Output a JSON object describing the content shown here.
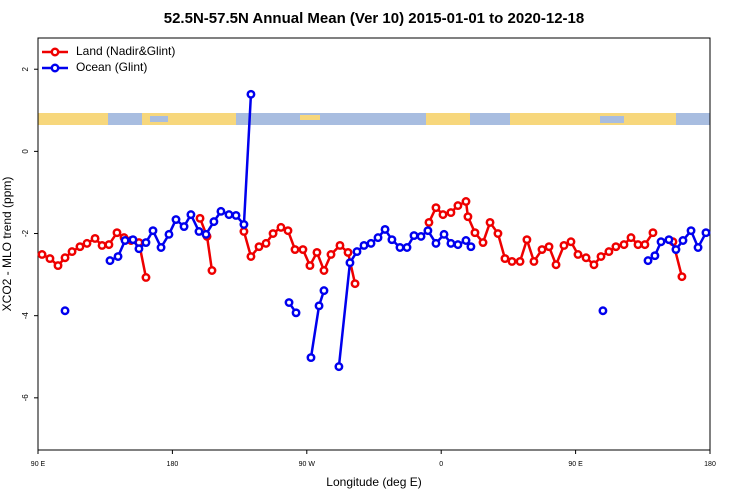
{
  "chart_data": {
    "type": "line",
    "title": "52.5N-57.5N Annual Mean (Ver 10)   2015-01-01 to 2020-12-18",
    "x_label": "Longitude (deg E)",
    "y_label": "XCO2 - MLO trend (ppm)",
    "xlim": [
      90,
      540
    ],
    "ylim": [
      -7.27,
      2.76
    ],
    "xticks": [
      {
        "value": 90,
        "label": "90 E"
      },
      {
        "value": 180,
        "label": "180"
      },
      {
        "value": 270,
        "label": "90 W"
      },
      {
        "value": 360,
        "label": "0"
      },
      {
        "value": 450,
        "label": "90 E"
      },
      {
        "value": 540,
        "label": "180"
      }
    ],
    "yticks": [
      -6,
      -4,
      -2,
      0,
      2
    ],
    "legend": "top-left",
    "series": [
      {
        "name": "Land (Nadir&Glint)",
        "color": "#ee0000",
        "x": [
          92.7,
          98.0,
          103.4,
          108.1,
          112.8,
          118.1,
          122.8,
          128.2,
          132.9,
          137.5,
          142.9,
          147.6,
          152.3,
          157.6,
          162.3,
          null,
          198.5,
          203.2,
          206.5,
          null,
          227.9,
          232.6,
          238.0,
          242.7,
          247.4,
          252.7,
          257.4,
          262.1,
          267.4,
          272.1,
          276.8,
          281.5,
          286.2,
          292.2,
          297.6,
          302.3,
          null,
          351.8,
          356.5,
          361.2,
          366.5,
          371.2,
          376.6,
          377.9,
          382.6,
          388.0,
          392.7,
          398.0,
          402.7,
          407.4,
          412.8,
          417.4,
          422.1,
          427.5,
          432.2,
          436.9,
          442.2,
          446.9,
          451.6,
          457.0,
          462.3,
          467.0,
          472.3,
          477.0,
          482.4,
          487.1,
          491.8,
          496.4,
          501.8,
          null,
          515.2,
          521.2
        ],
        "values": [
          -2.51,
          -2.61,
          -2.78,
          -2.59,
          -2.44,
          -2.32,
          -2.24,
          -2.12,
          -2.29,
          -2.27,
          -1.98,
          -2.1,
          -2.17,
          -2.22,
          -3.07,
          null,
          -1.63,
          -2.07,
          -2.9,
          null,
          -1.95,
          -2.56,
          -2.32,
          -2.24,
          -2.0,
          -1.85,
          -1.93,
          -2.39,
          -2.39,
          -2.78,
          -2.46,
          -2.9,
          -2.51,
          -2.29,
          -2.46,
          -3.22,
          null,
          -1.73,
          -1.37,
          -1.54,
          -1.49,
          -1.32,
          -1.22,
          -1.59,
          -1.98,
          -2.22,
          -1.73,
          -2.0,
          -2.61,
          -2.68,
          -2.68,
          -2.15,
          -2.68,
          -2.39,
          -2.32,
          -2.76,
          -2.29,
          -2.2,
          -2.51,
          -2.59,
          -2.76,
          -2.56,
          -2.44,
          -2.32,
          -2.27,
          -2.1,
          -2.27,
          -2.27,
          -1.98,
          null,
          -2.2,
          -3.05
        ]
      },
      {
        "name": "Ocean (Glint)",
        "color": "#0000ee",
        "x": [
          108.1,
          null,
          138.2,
          143.6,
          148.3,
          153.6,
          157.6,
          162.3,
          167.0,
          172.4,
          177.7,
          182.4,
          187.8,
          192.4,
          197.8,
          202.5,
          207.8,
          212.5,
          217.9,
          222.6,
          227.9,
          232.6,
          null,
          258.1,
          262.8,
          null,
          272.8,
          278.2,
          281.5,
          null,
          291.5,
          298.9,
          303.6,
          308.3,
          313.0,
          317.7,
          322.4,
          327.0,
          332.4,
          337.1,
          341.8,
          346.5,
          351.1,
          356.5,
          361.9,
          366.5,
          371.2,
          376.6,
          379.9,
          null,
          468.3,
          null,
          498.5,
          503.1,
          507.2,
          512.5,
          517.2,
          521.9,
          527.3,
          532.0,
          537.3
        ],
        "values": [
          -3.88,
          null,
          -2.66,
          -2.56,
          -2.17,
          -2.15,
          -2.37,
          -2.22,
          -1.93,
          -2.34,
          -2.02,
          -1.66,
          -1.83,
          -1.54,
          -1.95,
          -2.02,
          -1.71,
          -1.46,
          -1.54,
          -1.56,
          -1.78,
          1.39,
          null,
          -3.68,
          -3.93,
          null,
          -5.02,
          -3.76,
          -3.39,
          null,
          -5.24,
          -2.71,
          -2.44,
          -2.29,
          -2.24,
          -2.1,
          -1.9,
          -2.15,
          -2.34,
          -2.34,
          -2.05,
          -2.07,
          -1.93,
          -2.24,
          -2.02,
          -2.24,
          -2.27,
          -2.17,
          -2.32,
          null,
          -3.88,
          null,
          -2.66,
          -2.54,
          -2.2,
          -2.15,
          -2.39,
          -2.17,
          -1.93,
          -2.34,
          -1.98
        ]
      }
    ]
  }
}
